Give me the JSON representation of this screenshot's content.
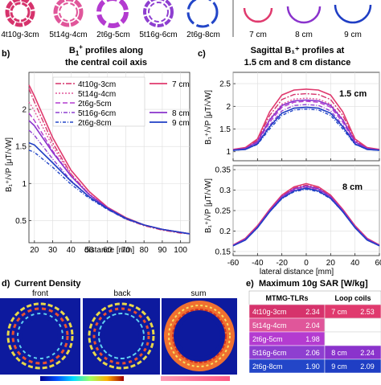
{
  "top_row": {
    "coil_labels": [
      "4t10g-3cm",
      "5t14g-4cm",
      "2t6g-5cm",
      "5t16g-6cm",
      "2t6g-8cm"
    ],
    "loop_labels": [
      "7 cm",
      "8 cm",
      "9 cm"
    ]
  },
  "colors": {
    "4t10g": "#d6336c",
    "5t14g": "#e0569a",
    "2t6g5": "#b43bd0",
    "5t16g": "#8e3fd0",
    "2t6g8": "#2346c8",
    "loop7": "#e03a6e",
    "loop8": "#8a33cc",
    "loop9": "#1f3ec4"
  },
  "panel_b": {
    "tag": "b)",
    "title_line1": "B",
    "title_sup": "+",
    "title_sub": "1",
    "title_rest": " profiles along",
    "title_line2": "the central coil axis",
    "ylabel": "B₁⁺/√P [μT/√W]",
    "xlabel": "distance [mm]",
    "legend_left": [
      "4t10g-3cm",
      "5t14g-4cm",
      "2t6g-5cm",
      "5t16g-6cm",
      "2t6g-8cm"
    ],
    "legend_right": [
      "7 cm",
      "8 cm",
      "9 cm"
    ]
  },
  "panel_c": {
    "tag": "c)",
    "title_line1": "Sagittal B₁⁺ profiles at",
    "title_line2": "1.5 cm and 8 cm distance",
    "ylabel_top": "B₁⁺/√P [μT/√W]",
    "ylabel_bottom": "B₁⁺/√P [μT/√W]",
    "label_top": "1.5 cm",
    "label_bottom": "8 cm",
    "xlabel": "lateral distance [mm]"
  },
  "panel_d": {
    "tag": "d)",
    "title": "Current Density",
    "labels": [
      "front",
      "back",
      "sum"
    ]
  },
  "panel_e": {
    "tag": "e)",
    "title": "Maximum 10g SAR [W/kg]",
    "header_left": "MTMG-TLRs",
    "header_right": "Loop coils",
    "rows": [
      {
        "name": "4t10g-3cm",
        "value": "2.34",
        "loop": "7 cm",
        "loop_value": "2.53"
      },
      {
        "name": "5t14g-4cm",
        "value": "2.04",
        "loop": "",
        "loop_value": ""
      },
      {
        "name": "2t6g-5cm",
        "value": "1.98",
        "loop": "",
        "loop_value": ""
      },
      {
        "name": "5t16g-6cm",
        "value": "2.06",
        "loop": "8 cm",
        "loop_value": "2.24"
      },
      {
        "name": "2t6g-8cm",
        "value": "1.90",
        "loop": "9 cm",
        "loop_value": "2.09"
      }
    ]
  },
  "chart_data": [
    {
      "type": "line",
      "xlim": [
        17,
        105
      ],
      "ylim": [
        0.2,
        2.5
      ],
      "xticks": [
        20,
        30,
        40,
        50,
        60,
        70,
        80,
        90,
        100
      ],
      "yticks": [
        0.5,
        1.0,
        1.5,
        2.0
      ],
      "xlabel": "distance [mm]",
      "ylabel": "B₁⁺/√P [μT/√W]",
      "x": [
        17,
        20,
        30,
        40,
        50,
        60,
        70,
        80,
        90,
        100,
        105
      ],
      "series": [
        {
          "name": "4t10g-3cm",
          "values": [
            2.28,
            2.1,
            1.55,
            1.13,
            0.85,
            0.66,
            0.52,
            0.43,
            0.37,
            0.33,
            0.32
          ]
        },
        {
          "name": "5t14g-4cm",
          "values": [
            2.1,
            1.98,
            1.5,
            1.12,
            0.86,
            0.67,
            0.53,
            0.44,
            0.38,
            0.34,
            0.32
          ]
        },
        {
          "name": "2t6g-5cm",
          "values": [
            1.95,
            1.85,
            1.44,
            1.1,
            0.85,
            0.67,
            0.53,
            0.44,
            0.38,
            0.34,
            0.32
          ]
        },
        {
          "name": "5t16g-6cm",
          "values": [
            1.72,
            1.65,
            1.33,
            1.04,
            0.82,
            0.65,
            0.52,
            0.44,
            0.38,
            0.34,
            0.32
          ]
        },
        {
          "name": "2t6g-8cm",
          "values": [
            1.45,
            1.42,
            1.22,
            0.99,
            0.8,
            0.65,
            0.52,
            0.44,
            0.38,
            0.34,
            0.32
          ]
        },
        {
          "name": "7 cm",
          "values": [
            2.33,
            2.18,
            1.62,
            1.18,
            0.89,
            0.68,
            0.54,
            0.44,
            0.38,
            0.34,
            0.32
          ]
        },
        {
          "name": "8 cm",
          "values": [
            1.85,
            1.78,
            1.42,
            1.1,
            0.85,
            0.67,
            0.53,
            0.44,
            0.38,
            0.34,
            0.32
          ]
        },
        {
          "name": "9 cm",
          "values": [
            1.55,
            1.52,
            1.28,
            1.03,
            0.82,
            0.66,
            0.53,
            0.44,
            0.38,
            0.34,
            0.32
          ]
        }
      ]
    },
    {
      "type": "line",
      "xlim": [
        -60,
        60
      ],
      "ylim": [
        0.8,
        2.75
      ],
      "xticks": [
        -60,
        -40,
        -20,
        0,
        20,
        40,
        60
      ],
      "yticks": [
        1.0,
        1.5,
        2.0,
        2.5
      ],
      "x": [
        -60,
        -50,
        -40,
        -30,
        -20,
        -10,
        0,
        10,
        20,
        30,
        40,
        50,
        60
      ],
      "series": [
        {
          "name": "4t10g-3cm",
          "values": [
            1.05,
            1.08,
            1.25,
            1.8,
            2.15,
            2.26,
            2.28,
            2.26,
            2.15,
            1.8,
            1.25,
            1.08,
            1.05
          ]
        },
        {
          "name": "5t14g-4cm",
          "values": [
            1.04,
            1.07,
            1.22,
            1.72,
            2.05,
            2.16,
            2.18,
            2.16,
            2.05,
            1.72,
            1.22,
            1.07,
            1.04
          ]
        },
        {
          "name": "2t6g-5cm",
          "values": [
            1.04,
            1.06,
            1.2,
            1.65,
            1.98,
            2.09,
            2.11,
            2.09,
            1.98,
            1.65,
            1.2,
            1.06,
            1.04
          ]
        },
        {
          "name": "5t16g-6cm",
          "values": [
            1.03,
            1.05,
            1.18,
            1.58,
            1.9,
            2.02,
            2.04,
            2.02,
            1.9,
            1.58,
            1.18,
            1.05,
            1.03
          ]
        },
        {
          "name": "2t6g-8cm",
          "values": [
            1.03,
            1.05,
            1.16,
            1.5,
            1.8,
            1.92,
            1.94,
            1.92,
            1.8,
            1.5,
            1.16,
            1.05,
            1.03
          ]
        },
        {
          "name": "7 cm",
          "values": [
            1.05,
            1.09,
            1.28,
            1.88,
            2.25,
            2.36,
            2.38,
            2.36,
            2.25,
            1.88,
            1.28,
            1.09,
            1.05
          ]
        },
        {
          "name": "8 cm",
          "values": [
            1.04,
            1.07,
            1.22,
            1.7,
            2.02,
            2.12,
            2.14,
            2.12,
            2.02,
            1.7,
            1.22,
            1.07,
            1.04
          ]
        },
        {
          "name": "9 cm",
          "values": [
            1.03,
            1.05,
            1.17,
            1.55,
            1.85,
            1.96,
            1.98,
            1.96,
            1.85,
            1.55,
            1.17,
            1.05,
            1.03
          ]
        }
      ]
    },
    {
      "type": "line",
      "xlim": [
        -60,
        60
      ],
      "ylim": [
        0.14,
        0.36
      ],
      "xticks": [
        -60,
        -40,
        -20,
        0,
        20,
        40,
        60
      ],
      "yticks": [
        0.15,
        0.2,
        0.25,
        0.3,
        0.35
      ],
      "xlabel": "lateral distance [mm]",
      "x": [
        -60,
        -50,
        -40,
        -30,
        -20,
        -10,
        0,
        10,
        20,
        30,
        40,
        50,
        60
      ],
      "series": [
        {
          "name": "4t10g-3cm",
          "values": [
            0.165,
            0.18,
            0.21,
            0.25,
            0.285,
            0.305,
            0.312,
            0.305,
            0.285,
            0.25,
            0.21,
            0.18,
            0.165
          ]
        },
        {
          "name": "5t14g-4cm",
          "values": [
            0.165,
            0.18,
            0.21,
            0.25,
            0.283,
            0.302,
            0.308,
            0.302,
            0.283,
            0.25,
            0.21,
            0.18,
            0.165
          ]
        },
        {
          "name": "2t6g-5cm",
          "values": [
            0.165,
            0.18,
            0.21,
            0.249,
            0.282,
            0.3,
            0.306,
            0.3,
            0.282,
            0.249,
            0.21,
            0.18,
            0.165
          ]
        },
        {
          "name": "5t16g-6cm",
          "values": [
            0.164,
            0.179,
            0.209,
            0.248,
            0.28,
            0.298,
            0.304,
            0.298,
            0.28,
            0.248,
            0.209,
            0.179,
            0.164
          ]
        },
        {
          "name": "2t6g-8cm",
          "values": [
            0.164,
            0.178,
            0.208,
            0.247,
            0.279,
            0.296,
            0.302,
            0.296,
            0.279,
            0.247,
            0.208,
            0.178,
            0.164
          ]
        },
        {
          "name": "7 cm",
          "values": [
            0.166,
            0.182,
            0.213,
            0.253,
            0.288,
            0.308,
            0.316,
            0.308,
            0.288,
            0.253,
            0.213,
            0.182,
            0.166
          ]
        },
        {
          "name": "8 cm",
          "values": [
            0.165,
            0.18,
            0.21,
            0.25,
            0.284,
            0.303,
            0.31,
            0.303,
            0.284,
            0.25,
            0.21,
            0.18,
            0.165
          ]
        },
        {
          "name": "9 cm",
          "values": [
            0.164,
            0.178,
            0.208,
            0.247,
            0.28,
            0.298,
            0.305,
            0.298,
            0.28,
            0.247,
            0.208,
            0.178,
            0.164
          ]
        }
      ]
    }
  ]
}
